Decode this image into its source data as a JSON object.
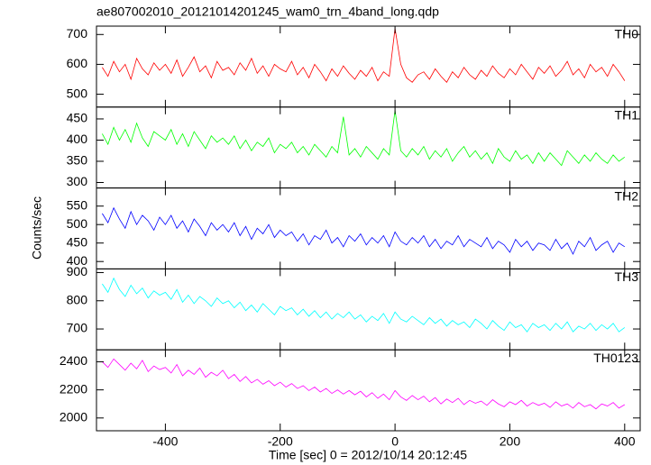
{
  "title": "ae807002010_20121014201245_wam0_trn_4band_long.qdp",
  "xlabel": "Time [sec] 0 = 2012/10/14 20:12:45",
  "ylabel": "Counts/sec",
  "xlim": [
    -520,
    427
  ],
  "xticks": [
    -400,
    -200,
    0,
    200,
    400
  ],
  "x": [
    -510,
    -500,
    -490,
    -480,
    -470,
    -460,
    -450,
    -440,
    -430,
    -420,
    -410,
    -400,
    -390,
    -380,
    -370,
    -360,
    -350,
    -340,
    -330,
    -320,
    -310,
    -300,
    -290,
    -280,
    -270,
    -260,
    -250,
    -240,
    -230,
    -220,
    -210,
    -200,
    -190,
    -180,
    -170,
    -160,
    -150,
    -140,
    -130,
    -120,
    -110,
    -100,
    -90,
    -80,
    -70,
    -60,
    -50,
    -40,
    -30,
    -20,
    -10,
    0,
    10,
    20,
    30,
    40,
    50,
    60,
    70,
    80,
    90,
    100,
    110,
    120,
    130,
    140,
    150,
    160,
    170,
    180,
    190,
    200,
    210,
    220,
    230,
    240,
    250,
    260,
    270,
    280,
    290,
    300,
    310,
    320,
    330,
    340,
    350,
    360,
    370,
    380,
    390,
    400
  ],
  "chart_data": [
    {
      "type": "line",
      "ylim": [
        457,
        728
      ],
      "yticks": [
        500,
        600,
        700
      ],
      "series": [
        {
          "name": "TH0",
          "color": "#ff0000",
          "values": [
            590,
            560,
            610,
            575,
            600,
            550,
            620,
            585,
            565,
            605,
            580,
            600,
            570,
            615,
            560,
            590,
            625,
            575,
            595,
            555,
            610,
            580,
            590,
            565,
            605,
            580,
            620,
            570,
            595,
            560,
            600,
            585,
            575,
            610,
            565,
            590,
            555,
            600,
            575,
            545,
            585,
            560,
            595,
            570,
            550,
            580,
            560,
            590,
            545,
            575,
            560,
            720,
            600,
            555,
            540,
            565,
            575,
            550,
            585,
            560,
            540,
            575,
            555,
            590,
            565,
            550,
            580,
            560,
            595,
            570,
            555,
            585,
            565,
            600,
            575,
            550,
            590,
            570,
            595,
            560,
            580,
            610,
            565,
            585,
            555,
            600,
            575,
            590,
            560,
            600,
            575,
            545
          ]
        }
      ]
    },
    {
      "type": "line",
      "ylim": [
        287,
        478
      ],
      "yticks": [
        300,
        350,
        400,
        450
      ],
      "series": [
        {
          "name": "TH1",
          "color": "#00ff00",
          "values": [
            415,
            390,
            430,
            400,
            425,
            395,
            440,
            405,
            385,
            420,
            410,
            400,
            425,
            390,
            415,
            385,
            420,
            400,
            380,
            410,
            395,
            405,
            390,
            410,
            380,
            400,
            375,
            395,
            385,
            405,
            370,
            390,
            380,
            395,
            370,
            385,
            365,
            390,
            375,
            360,
            385,
            370,
            455,
            365,
            380,
            360,
            385,
            370,
            355,
            380,
            365,
            470,
            375,
            360,
            380,
            365,
            385,
            355,
            375,
            360,
            380,
            350,
            370,
            385,
            360,
            375,
            355,
            370,
            345,
            380,
            360,
            350,
            375,
            355,
            365,
            345,
            370,
            350,
            370,
            355,
            340,
            375,
            360,
            345,
            365,
            350,
            370,
            355,
            345,
            365,
            350,
            360
          ]
        }
      ]
    },
    {
      "type": "line",
      "ylim": [
        380,
        599
      ],
      "yticks": [
        400,
        450,
        500,
        550
      ],
      "series": [
        {
          "name": "TH2",
          "color": "#0000ff",
          "values": [
            530,
            505,
            545,
            515,
            490,
            535,
            500,
            525,
            510,
            485,
            520,
            500,
            525,
            490,
            510,
            480,
            515,
            495,
            470,
            505,
            485,
            500,
            480,
            505,
            470,
            495,
            460,
            490,
            475,
            500,
            465,
            485,
            470,
            480,
            455,
            475,
            445,
            470,
            460,
            485,
            450,
            465,
            440,
            470,
            455,
            475,
            445,
            465,
            450,
            470,
            440,
            480,
            455,
            445,
            465,
            450,
            470,
            440,
            460,
            435,
            455,
            445,
            470,
            440,
            460,
            450,
            440,
            465,
            435,
            455,
            445,
            425,
            460,
            440,
            455,
            430,
            450,
            445,
            430,
            460,
            435,
            450,
            420,
            455,
            440,
            465,
            430,
            445,
            455,
            425,
            450,
            440
          ]
        }
      ]
    },
    {
      "type": "line",
      "ylim": [
        626,
        913
      ],
      "yticks": [
        700,
        800,
        900
      ],
      "series": [
        {
          "name": "TH3",
          "color": "#00ffff",
          "values": [
            860,
            830,
            880,
            840,
            815,
            855,
            825,
            845,
            810,
            835,
            820,
            830,
            805,
            840,
            795,
            820,
            790,
            815,
            800,
            780,
            810,
            790,
            800,
            775,
            795,
            765,
            785,
            760,
            790,
            770,
            750,
            780,
            765,
            775,
            750,
            770,
            745,
            765,
            740,
            760,
            735,
            755,
            740,
            760,
            735,
            750,
            725,
            745,
            730,
            755,
            720,
            760,
            735,
            725,
            745,
            730,
            715,
            740,
            720,
            735,
            710,
            730,
            715,
            725,
            705,
            735,
            720,
            700,
            730,
            710,
            695,
            725,
            705,
            715,
            690,
            720,
            705,
            715,
            695,
            720,
            700,
            725,
            690,
            710,
            700,
            720,
            695,
            715,
            700,
            720,
            690,
            705
          ]
        }
      ]
    },
    {
      "type": "line",
      "ylim": [
        1909,
        2485
      ],
      "yticks": [
        2000,
        2200,
        2400
      ],
      "series": [
        {
          "name": "TH0123",
          "color": "#ff00ff",
          "values": [
            2400,
            2360,
            2420,
            2380,
            2340,
            2390,
            2350,
            2410,
            2330,
            2370,
            2345,
            2360,
            2320,
            2380,
            2300,
            2340,
            2310,
            2355,
            2290,
            2325,
            2300,
            2340,
            2280,
            2310,
            2260,
            2295,
            2250,
            2275,
            2240,
            2265,
            2230,
            2255,
            2220,
            2245,
            2210,
            2230,
            2195,
            2220,
            2185,
            2210,
            2175,
            2200,
            2170,
            2195,
            2165,
            2190,
            2150,
            2180,
            2140,
            2170,
            2130,
            2195,
            2150,
            2125,
            2160,
            2130,
            2155,
            2115,
            2145,
            2100,
            2135,
            2110,
            2140,
            2095,
            2125,
            2105,
            2120,
            2090,
            2130,
            2100,
            2080,
            2115,
            2095,
            2125,
            2085,
            2110,
            2090,
            2105,
            2075,
            2115,
            2085,
            2100,
            2070,
            2110,
            2080,
            2095,
            2065,
            2100,
            2085,
            2110,
            2070,
            2095
          ]
        }
      ]
    }
  ]
}
